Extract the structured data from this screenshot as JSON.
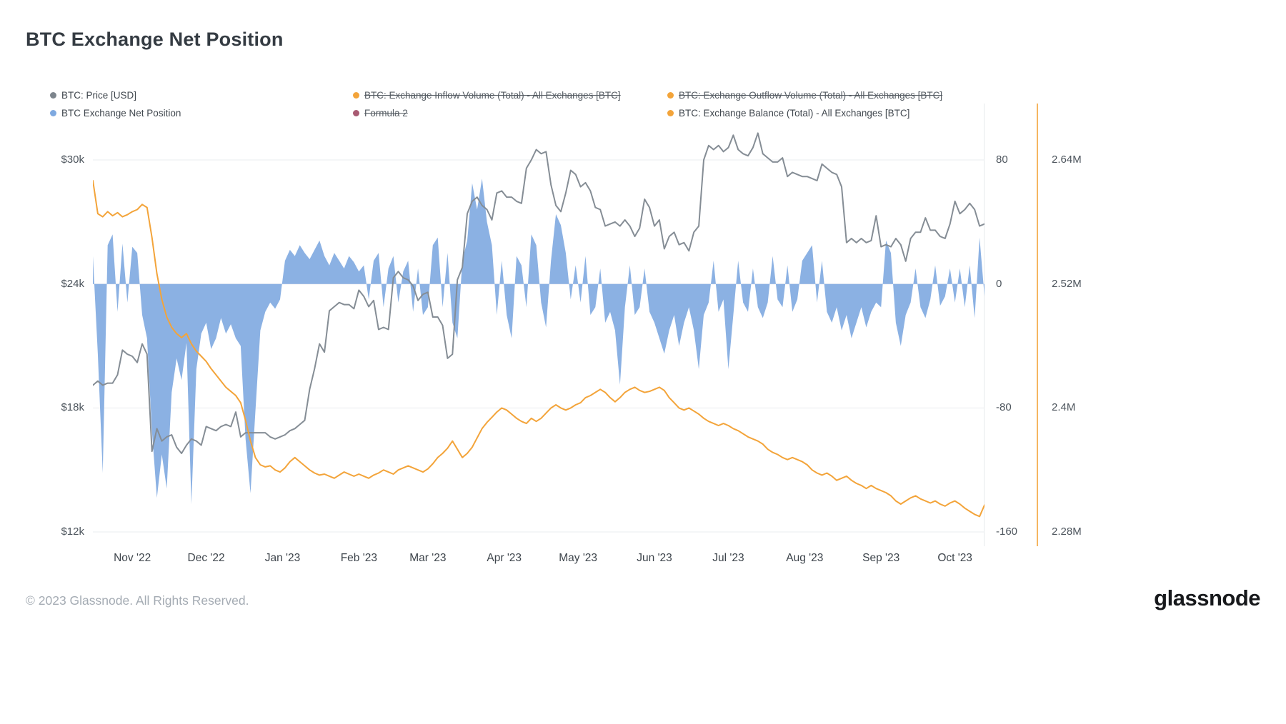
{
  "title": "BTC Exchange Net Position",
  "footer": {
    "copyright": "© 2023 Glassnode. All Rights Reserved.",
    "brand": "glassnode"
  },
  "colors": {
    "grid": "#e9ecef",
    "price": "#858d95",
    "net": "#7ea9e0",
    "balance": "#f3a43a",
    "formula": "#a85a72",
    "axis_line": "#f3a43a"
  },
  "legend": [
    {
      "label": "BTC: Price [USD]",
      "color": "#7d858d",
      "disabled": false
    },
    {
      "label": "BTC: Exchange Inflow Volume (Total) - All Exchanges [BTC]",
      "color": "#f3a43a",
      "disabled": true
    },
    {
      "label": "BTC: Exchange Outflow Volume (Total) - All Exchanges [BTC]",
      "color": "#f3a43a",
      "disabled": true
    },
    {
      "label": "BTC Exchange Net Position",
      "color": "#7ea9e0",
      "disabled": false
    },
    {
      "label": "Formula 2",
      "color": "#a85a72",
      "disabled": true
    },
    {
      "label": "BTC: Exchange Balance (Total) - All Exchanges [BTC]",
      "color": "#f3a43a",
      "disabled": false
    }
  ],
  "chart_data": {
    "type": "mixed",
    "title": "BTC Exchange Net Position",
    "x_description": "Sample index, ~2-day spacing, mid-Oct 2022 to mid-Oct 2023",
    "x_ticks": [
      {
        "label": "Nov '22",
        "i": 8
      },
      {
        "label": "Dec '22",
        "i": 23
      },
      {
        "label": "Jan '23",
        "i": 38.5
      },
      {
        "label": "Feb '23",
        "i": 54
      },
      {
        "label": "Mar '23",
        "i": 68
      },
      {
        "label": "Apr '23",
        "i": 83.5
      },
      {
        "label": "May '23",
        "i": 98.5
      },
      {
        "label": "Jun '23",
        "i": 114
      },
      {
        "label": "Jul '23",
        "i": 129
      },
      {
        "label": "Aug '23",
        "i": 144.5
      },
      {
        "label": "Sep '23",
        "i": 160
      },
      {
        "label": "Oct '23",
        "i": 175
      }
    ],
    "axes": {
      "price": {
        "side": "left",
        "unit": "USD thousands",
        "min": 11.31,
        "max": 32.73,
        "ticks": [
          {
            "label": "$30k",
            "value": 30
          },
          {
            "label": "$24k",
            "value": 24
          },
          {
            "label": "$18k",
            "value": 18
          },
          {
            "label": "$12k",
            "value": 12
          }
        ]
      },
      "net": {
        "side": "right",
        "unit": "BTC (thousands, net position change)",
        "min": -169.2,
        "max": 116.4,
        "ticks": [
          {
            "label": "80",
            "value": 80
          },
          {
            "label": "0",
            "value": 0
          },
          {
            "label": "-80",
            "value": -80
          },
          {
            "label": "-160",
            "value": -160
          }
        ]
      },
      "balance": {
        "side": "far-right",
        "unit": "BTC millions",
        "min": 2.2662,
        "max": 2.6946,
        "ticks": [
          {
            "label": "2.64M",
            "value": 2.64
          },
          {
            "label": "2.52M",
            "value": 2.52
          },
          {
            "label": "2.4M",
            "value": 2.4
          },
          {
            "label": "2.28M",
            "value": 2.28
          }
        ]
      }
    },
    "series": [
      {
        "name": "BTC Exchange Net Position",
        "type": "area",
        "axis": "net",
        "color": "#7ea9e0",
        "values": [
          18,
          -45,
          -122,
          25,
          32,
          -18,
          26,
          -12,
          24,
          20,
          -20,
          -35,
          -95,
          -138,
          -110,
          -132,
          -70,
          -48,
          -62,
          -38,
          -142,
          -55,
          -32,
          -25,
          -42,
          -35,
          -22,
          -32,
          -26,
          -35,
          -40,
          -100,
          -135,
          -82,
          -30,
          -18,
          -12,
          -16,
          -10,
          15,
          22,
          18,
          25,
          20,
          16,
          22,
          28,
          18,
          12,
          20,
          15,
          10,
          18,
          14,
          8,
          12,
          -10,
          15,
          20,
          -15,
          10,
          18,
          -12,
          8,
          15,
          -18,
          10,
          -20,
          -15,
          25,
          30,
          -15,
          20,
          -25,
          -35,
          15,
          28,
          65,
          48,
          68,
          40,
          25,
          -20,
          15,
          -20,
          -35,
          18,
          12,
          -15,
          32,
          25,
          -12,
          -28,
          15,
          45,
          38,
          20,
          -10,
          12,
          -12,
          18,
          -20,
          -15,
          10,
          -25,
          -18,
          -30,
          -65,
          -15,
          12,
          -20,
          -15,
          10,
          -18,
          -25,
          -35,
          -45,
          -30,
          -20,
          -40,
          -25,
          -15,
          -30,
          -55,
          -20,
          -12,
          15,
          -18,
          -10,
          -55,
          -20,
          15,
          -12,
          -18,
          10,
          -15,
          -22,
          -12,
          18,
          -10,
          -15,
          12,
          -18,
          -10,
          15,
          20,
          25,
          -12,
          15,
          -18,
          -25,
          -15,
          -30,
          -20,
          -35,
          -25,
          -15,
          -28,
          -18,
          -12,
          -15,
          28,
          20,
          -25,
          -40,
          -20,
          -12,
          10,
          -15,
          -22,
          -10,
          12,
          -14,
          -8,
          10,
          -12,
          10,
          -15,
          12,
          -22,
          30,
          -8
        ]
      },
      {
        "name": "BTC: Price [USD]",
        "type": "line",
        "axis": "price",
        "color": "#858d95",
        "values": [
          19.1,
          19.3,
          19.1,
          19.2,
          19.2,
          19.6,
          20.8,
          20.6,
          20.5,
          20.2,
          21.1,
          20.6,
          15.9,
          17.0,
          16.4,
          16.6,
          16.7,
          16.1,
          15.8,
          16.2,
          16.5,
          16.4,
          16.2,
          17.1,
          17.0,
          16.9,
          17.1,
          17.2,
          17.1,
          17.8,
          16.6,
          16.8,
          16.8,
          16.8,
          16.8,
          16.8,
          16.6,
          16.5,
          16.6,
          16.7,
          16.9,
          17.0,
          17.2,
          17.4,
          18.9,
          19.9,
          21.1,
          20.7,
          22.7,
          22.9,
          23.1,
          23.0,
          23.0,
          22.8,
          23.7,
          23.4,
          22.9,
          23.2,
          21.8,
          21.9,
          21.8,
          24.3,
          24.6,
          24.3,
          24.2,
          23.9,
          23.2,
          23.5,
          23.6,
          22.4,
          22.4,
          22.0,
          20.4,
          20.6,
          24.2,
          24.8,
          27.4,
          28.0,
          28.2,
          27.8,
          27.6,
          27.1,
          28.4,
          28.5,
          28.2,
          28.2,
          28.0,
          27.9,
          29.6,
          30.0,
          30.5,
          30.3,
          30.4,
          28.8,
          27.8,
          27.5,
          28.4,
          29.5,
          29.3,
          28.7,
          28.9,
          28.5,
          27.7,
          27.6,
          26.8,
          26.9,
          27.0,
          26.8,
          27.1,
          26.8,
          26.3,
          26.7,
          28.1,
          27.7,
          26.8,
          27.1,
          25.7,
          26.3,
          26.5,
          25.9,
          26.0,
          25.6,
          26.5,
          26.8,
          30.0,
          30.7,
          30.5,
          30.7,
          30.4,
          30.6,
          31.2,
          30.5,
          30.3,
          30.2,
          30.6,
          31.3,
          30.3,
          30.1,
          29.9,
          29.9,
          30.1,
          29.2,
          29.4,
          29.3,
          29.2,
          29.2,
          29.1,
          29.0,
          29.8,
          29.6,
          29.4,
          29.3,
          28.7,
          26.0,
          26.2,
          26.0,
          26.2,
          26.0,
          26.1,
          27.3,
          25.8,
          25.9,
          25.8,
          26.2,
          25.9,
          25.1,
          26.2,
          26.5,
          26.5,
          27.2,
          26.6,
          26.6,
          26.3,
          26.2,
          26.9,
          28.0,
          27.4,
          27.6,
          27.9,
          27.6,
          26.8,
          26.9
        ]
      },
      {
        "name": "BTC: Exchange Balance (Total) - All Exchanges [BTC]",
        "type": "line",
        "axis": "balance",
        "color": "#f3a43a",
        "values": [
          2.62,
          2.588,
          2.585,
          2.59,
          2.586,
          2.589,
          2.585,
          2.587,
          2.59,
          2.592,
          2.597,
          2.594,
          2.565,
          2.53,
          2.505,
          2.488,
          2.478,
          2.472,
          2.468,
          2.472,
          2.462,
          2.455,
          2.45,
          2.445,
          2.438,
          2.432,
          2.426,
          2.42,
          2.416,
          2.412,
          2.405,
          2.388,
          2.368,
          2.352,
          2.345,
          2.343,
          2.344,
          2.34,
          2.338,
          2.342,
          2.348,
          2.352,
          2.348,
          2.344,
          2.34,
          2.337,
          2.335,
          2.336,
          2.334,
          2.332,
          2.335,
          2.338,
          2.336,
          2.334,
          2.336,
          2.334,
          2.332,
          2.335,
          2.337,
          2.34,
          2.338,
          2.336,
          2.34,
          2.342,
          2.344,
          2.342,
          2.34,
          2.338,
          2.341,
          2.346,
          2.352,
          2.356,
          2.361,
          2.368,
          2.36,
          2.352,
          2.356,
          2.362,
          2.371,
          2.38,
          2.386,
          2.391,
          2.396,
          2.4,
          2.398,
          2.394,
          2.39,
          2.387,
          2.385,
          2.39,
          2.387,
          2.39,
          2.395,
          2.4,
          2.403,
          2.4,
          2.398,
          2.4,
          2.403,
          2.405,
          2.41,
          2.412,
          2.415,
          2.418,
          2.415,
          2.41,
          2.406,
          2.41,
          2.415,
          2.418,
          2.42,
          2.417,
          2.415,
          2.416,
          2.418,
          2.42,
          2.417,
          2.41,
          2.405,
          2.4,
          2.398,
          2.4,
          2.397,
          2.394,
          2.39,
          2.387,
          2.385,
          2.383,
          2.385,
          2.383,
          2.38,
          2.378,
          2.375,
          2.372,
          2.37,
          2.368,
          2.365,
          2.36,
          2.357,
          2.355,
          2.352,
          2.35,
          2.352,
          2.35,
          2.348,
          2.345,
          2.34,
          2.337,
          2.335,
          2.337,
          2.334,
          2.33,
          2.332,
          2.334,
          2.33,
          2.327,
          2.325,
          2.322,
          2.325,
          2.322,
          2.32,
          2.318,
          2.315,
          2.31,
          2.307,
          2.31,
          2.313,
          2.315,
          2.312,
          2.31,
          2.308,
          2.31,
          2.307,
          2.305,
          2.308,
          2.31,
          2.307,
          2.303,
          2.3,
          2.297,
          2.295,
          2.306
        ]
      }
    ]
  }
}
